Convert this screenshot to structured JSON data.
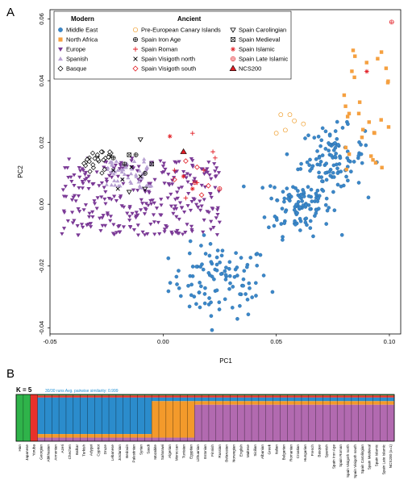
{
  "figure": {
    "panel_a": "A",
    "panel_b": "B"
  },
  "chart_data": [
    {
      "type": "scatter",
      "title": "",
      "xlabel": "PC1",
      "ylabel": "PC2",
      "xlim": [
        -0.05,
        0.105
      ],
      "ylim": [
        -0.042,
        0.063
      ],
      "xticks": [
        -0.05,
        0.0,
        0.05,
        0.1
      ],
      "xtick_labels": [
        "-0.05",
        "0.00",
        "0.05",
        "0.10"
      ],
      "yticks": [
        -0.04,
        -0.02,
        0.0,
        0.02,
        0.04,
        0.06
      ],
      "ytick_labels": [
        "-0.04",
        "-0.02",
        "0.00",
        "0.02",
        "0.04",
        "0.06"
      ],
      "grid": false,
      "legend_placement": "top",
      "legend": {
        "modern_title": "Modern",
        "ancient_title": "Ancient",
        "modern": [
          {
            "name": "Middle East",
            "marker": "circle",
            "color": "#3b87c9"
          },
          {
            "name": "North Africa",
            "marker": "square",
            "color": "#f5a040"
          },
          {
            "name": "Europe",
            "marker": "tri-down",
            "color": "#7b3a96"
          },
          {
            "name": "Spanish",
            "marker": "tri-up",
            "color": "#b8a2d3"
          },
          {
            "name": "Basque",
            "marker": "diamond",
            "color": "#000000"
          }
        ],
        "ancient": [
          {
            "name": "Pre-European Canary Islands",
            "marker": "open-circle",
            "color": "#f0a030"
          },
          {
            "name": "Spain Iron Age",
            "marker": "circle-plus",
            "color": "#000000"
          },
          {
            "name": "Spain Roman",
            "marker": "plus",
            "color": "#e21f26"
          },
          {
            "name": "Spain Visigoth north",
            "marker": "x",
            "color": "#000000"
          },
          {
            "name": "Spain Visigoth south",
            "marker": "open-diamond",
            "color": "#e21f26"
          },
          {
            "name": "Spain Carolingian",
            "marker": "open-tri-down",
            "color": "#000000"
          },
          {
            "name": "Spain Medieval",
            "marker": "square-x",
            "color": "#000000"
          },
          {
            "name": "Spain Islamic",
            "marker": "asterisk",
            "color": "#e21f26"
          },
          {
            "name": "Spain Late Islamic",
            "marker": "circle-cross",
            "color": "#e21f26"
          },
          {
            "name": "NCS200",
            "marker": "filled-tri-up",
            "color": "#e21f26"
          }
        ]
      },
      "series": [
        {
          "name": "Middle East",
          "count": 320,
          "cluster_centers": [
            [
              0.025,
              -0.025
            ],
            [
              0.06,
              0.0
            ],
            [
              0.075,
              0.015
            ]
          ]
        },
        {
          "name": "North Africa",
          "count": 30,
          "x_range": [
            0.078,
            0.1
          ],
          "y_range": [
            0.01,
            0.05
          ]
        },
        {
          "name": "Europe",
          "count": 300,
          "x_range": [
            -0.045,
            0.025
          ],
          "y_range": [
            -0.01,
            0.015
          ]
        },
        {
          "name": "Spanish",
          "count": 60,
          "x_range": [
            -0.025,
            -0.005
          ],
          "y_range": [
            0.005,
            0.015
          ]
        },
        {
          "name": "Basque",
          "count": 30,
          "x_range": [
            -0.035,
            -0.02
          ],
          "y_range": [
            0.01,
            0.017
          ]
        },
        {
          "name": "Pre-European Canary Islands",
          "points": [
            [
              0.052,
              0.029
            ],
            [
              0.056,
              0.029
            ],
            [
              0.05,
              0.023
            ],
            [
              0.054,
              0.024
            ],
            [
              0.058,
              0.027
            ],
            [
              0.062,
              0.026
            ]
          ]
        },
        {
          "name": "Spain Iron Age",
          "points": [
            [
              -0.012,
              0.016
            ],
            [
              -0.017,
              0.013
            ],
            [
              -0.022,
              0.015
            ],
            [
              -0.008,
              0.01
            ]
          ]
        },
        {
          "name": "Spain Roman",
          "points": [
            [
              0.013,
              0.023
            ],
            [
              0.023,
              0.015
            ],
            [
              0.018,
              0.011
            ],
            [
              0.015,
              0.007
            ],
            [
              0.01,
              0.002
            ],
            [
              0.022,
              0.017
            ],
            [
              0.005,
              0.011
            ]
          ]
        },
        {
          "name": "Spain Visigoth north",
          "points": [
            [
              -0.022,
              0.011
            ],
            [
              -0.018,
              0.008
            ],
            [
              -0.014,
              0.012
            ],
            [
              -0.01,
              0.009
            ],
            [
              -0.02,
              0.005
            ]
          ]
        },
        {
          "name": "Spain Visigoth south",
          "points": [
            [
              0.005,
              0.008
            ],
            [
              0.015,
              0.012
            ],
            [
              0.02,
              0.006
            ],
            [
              0.01,
              0.014
            ],
            [
              0.017,
              0.003
            ]
          ]
        },
        {
          "name": "Spain Carolingian",
          "points": [
            [
              -0.01,
              0.021
            ],
            [
              -0.015,
              0.004
            ],
            [
              -0.008,
              0.005
            ]
          ]
        },
        {
          "name": "Spain Medieval",
          "points": [
            [
              -0.015,
              0.016
            ],
            [
              -0.005,
              0.013
            ]
          ]
        },
        {
          "name": "Spain Islamic",
          "points": [
            [
              0.003,
              0.022
            ],
            [
              0.013,
              0.005
            ],
            [
              0.009,
              0.009
            ],
            [
              0.09,
              0.043
            ]
          ]
        },
        {
          "name": "Spain Late Islamic",
          "points": [
            [
              0.014,
              0.007
            ],
            [
              0.101,
              0.059
            ],
            [
              0.025,
              0.005
            ]
          ]
        },
        {
          "name": "NCS200",
          "points": [
            [
              0.009,
              0.017
            ]
          ]
        }
      ]
    },
    {
      "type": "bar",
      "subtype": "stacked-admixture",
      "k_label": "K = 5",
      "k_sub": "30/30 runs  Avg. pairwise similarity: 0.999",
      "components": [
        {
          "name": "C1",
          "color": "#2fb34a"
        },
        {
          "name": "C2",
          "color": "#e8312a"
        },
        {
          "name": "C3",
          "color": "#2b8ccc"
        },
        {
          "name": "C4",
          "color": "#f39a2b"
        },
        {
          "name": "C5",
          "color": "#b26ab0"
        }
      ],
      "populations": [
        "Han",
        "Japanese",
        "Yoruba",
        "Georgian",
        "Abkhasian",
        "Armenian",
        "Azeri",
        "Chechen",
        "Balkar",
        "Turkish",
        "Adygei",
        "Cypriot",
        "Druze",
        "Lebanese",
        "Jordanian",
        "Bedouin",
        "Palestinian",
        "Syrian",
        "Saudi",
        "Mozabite",
        "Saharawi",
        "Algerian",
        "Moroccan",
        "Tunisian",
        "Egyptian",
        "Lithuanian",
        "Estonian",
        "Finnish",
        "Russian",
        "Belarusian",
        "Norwegian",
        "English",
        "Maltese",
        "Sicilian",
        "Albanian",
        "Greek",
        "Italian",
        "Bulgarian",
        "Romanian",
        "Croatian",
        "Hungarian",
        "French",
        "Basque",
        "Spanish",
        "Spain Iron Age",
        "Spain Roman",
        "Spain Visigoth north",
        "Spain Visigoth south",
        "Spain Carolingian",
        "Spain Medieval",
        "Spain Islamic",
        "Spain Late Islamic",
        "NCS200 (x=1)"
      ],
      "dominant": [
        0,
        0,
        1,
        2,
        2,
        2,
        2,
        2,
        2,
        2,
        2,
        2,
        2,
        2,
        2,
        2,
        2,
        2,
        2,
        3,
        3,
        3,
        3,
        3,
        3,
        4,
        4,
        4,
        4,
        4,
        4,
        4,
        4,
        4,
        4,
        4,
        4,
        4,
        4,
        4,
        4,
        4,
        4,
        4,
        4,
        4,
        4,
        4,
        4,
        4,
        4,
        4,
        4
      ]
    }
  ]
}
